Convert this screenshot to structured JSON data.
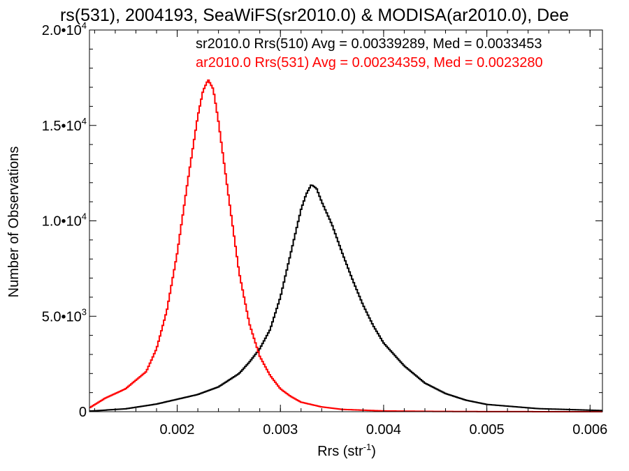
{
  "chart_data": {
    "type": "line",
    "title": "rs(531), 2004193, SeaWiFS(sr2010.0) & MODISA(ar2010.0), Dee",
    "xlabel": "Rrs (str",
    "xlabel_sup": "-1",
    "xlabel_close": ")",
    "ylabel": "Number of Observations",
    "xlim": [
      0.00115,
      0.00612
    ],
    "ylim": [
      0,
      20000
    ],
    "x_ticks": [
      0.002,
      0.003,
      0.004,
      0.005,
      0.006
    ],
    "x_tick_labels": [
      "0.002",
      "0.003",
      "0.004",
      "0.005",
      "0.006"
    ],
    "y_ticks": [
      0,
      5000,
      10000,
      15000,
      20000
    ],
    "y_tick_labels": [
      {
        "base": "0",
        "exp": ""
      },
      {
        "base": "5.0•10",
        "exp": "3"
      },
      {
        "base": "1.0•10",
        "exp": "4"
      },
      {
        "base": "1.5•10",
        "exp": "4"
      },
      {
        "base": "2.0•10",
        "exp": "4"
      }
    ],
    "grid": false,
    "legend_position": "top-right",
    "series": [
      {
        "name": "sr2010.0 Rrs(510) Avg = 0.00339289, Med = 0.0033453",
        "color": "#000000",
        "x": [
          0.00115,
          0.0015,
          0.0018,
          0.002,
          0.0022,
          0.0024,
          0.0026,
          0.0027,
          0.0028,
          0.0029,
          0.003,
          0.0031,
          0.0032,
          0.00325,
          0.0033,
          0.00335,
          0.0034,
          0.0035,
          0.0036,
          0.0037,
          0.0038,
          0.0039,
          0.004,
          0.0042,
          0.0044,
          0.0046,
          0.0048,
          0.005,
          0.0055,
          0.006,
          0.00612
        ],
        "y": [
          30,
          150,
          400,
          650,
          900,
          1300,
          2000,
          2600,
          3300,
          4300,
          6000,
          8300,
          10600,
          11400,
          11900,
          11700,
          11000,
          9800,
          8300,
          6900,
          5600,
          4500,
          3600,
          2400,
          1500,
          950,
          600,
          380,
          160,
          80,
          60
        ]
      },
      {
        "name": "ar2010.0 Rrs(531) Avg = 0.00234359, Med = 0.0023280",
        "color": "#ff0000",
        "x": [
          0.00115,
          0.0013,
          0.0015,
          0.0017,
          0.0018,
          0.0019,
          0.002,
          0.0021,
          0.0022,
          0.00225,
          0.0023,
          0.00235,
          0.0024,
          0.0025,
          0.0026,
          0.0027,
          0.0028,
          0.0029,
          0.003,
          0.0031,
          0.0032,
          0.0034,
          0.0036,
          0.004,
          0.0045,
          0.005,
          0.0055,
          0.006,
          0.00612
        ],
        "y": [
          200,
          700,
          1200,
          2100,
          3300,
          5300,
          8300,
          12000,
          15500,
          16800,
          17400,
          16900,
          15200,
          11200,
          7300,
          4600,
          2900,
          1900,
          1200,
          800,
          500,
          250,
          120,
          40,
          15,
          5,
          2,
          0,
          0
        ]
      }
    ]
  }
}
